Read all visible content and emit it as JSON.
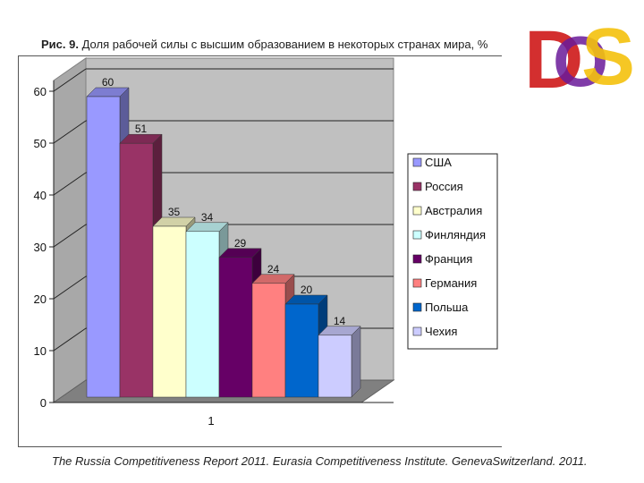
{
  "title_prefix": "Рис. 9.",
  "title_text": "Доля рабочей силы с высшим образованием в некоторых странах мира, %",
  "source": "The Russia Competitiveness Report 2011. Eurasia Competitiveness Institute. GenevaSwitzerland. 2011.",
  "logo": {
    "text": "DS",
    "colors": {
      "d": "#d32f2f",
      "o": "#6a1b9a",
      "s": "#f4c20d"
    }
  },
  "chart_data": {
    "type": "bar",
    "categories": [
      "1"
    ],
    "series": [
      {
        "name": "США",
        "values": [
          60
        ],
        "color": "#9999ff"
      },
      {
        "name": "Россия",
        "values": [
          51
        ],
        "color": "#993366"
      },
      {
        "name": "Австралия",
        "values": [
          35
        ],
        "color": "#ffffcc"
      },
      {
        "name": "Финляндия",
        "values": [
          34
        ],
        "color": "#ccffff"
      },
      {
        "name": "Франция",
        "values": [
          29
        ],
        "color": "#660066"
      },
      {
        "name": "Германия",
        "values": [
          24
        ],
        "color": "#ff8080"
      },
      {
        "name": "Польша",
        "values": [
          20
        ],
        "color": "#0066cc"
      },
      {
        "name": "Чехия",
        "values": [
          14
        ],
        "color": "#ccccff"
      }
    ],
    "ylim": [
      0,
      60
    ],
    "yticks": [
      0,
      10,
      20,
      30,
      40,
      50,
      60
    ],
    "xlabel": "",
    "ylabel": "",
    "grid": true,
    "legend": "right",
    "style": "3d"
  }
}
